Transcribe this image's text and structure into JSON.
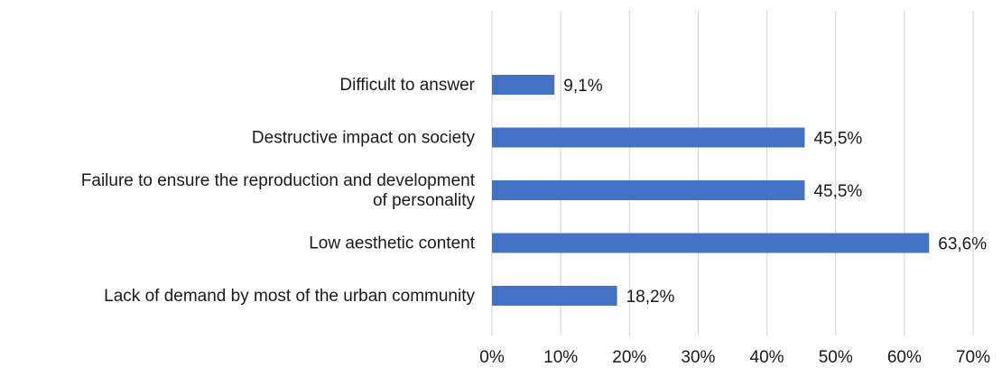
{
  "chart_data": {
    "type": "bar",
    "orientation": "horizontal",
    "categories": [
      "Difficult to answer",
      "Destructive impact on society",
      "Failure to ensure the reproduction and development of personality",
      "Low aesthetic content",
      "Lack of demand by most of the urban community"
    ],
    "category_lines": [
      [
        "Difficult to answer"
      ],
      [
        "Destructive impact on society"
      ],
      [
        "Failure to ensure the reproduction and development",
        "of personality"
      ],
      [
        "Low aesthetic content"
      ],
      [
        "Lack of demand by most of the urban community"
      ]
    ],
    "values": [
      9.1,
      45.5,
      45.5,
      63.6,
      18.2
    ],
    "data_labels": [
      "9,1%",
      "45,5%",
      "45,5%",
      "63,6%",
      "18,2%"
    ],
    "xlim": [
      0,
      70
    ],
    "x_ticks": [
      0,
      10,
      20,
      30,
      40,
      50,
      60,
      70
    ],
    "x_tick_labels": [
      "0%",
      "10%",
      "20%",
      "30%",
      "40%",
      "50%",
      "60%",
      "70%"
    ],
    "title": "",
    "xlabel": "",
    "ylabel": "",
    "grid": true,
    "legend": "none",
    "bar_color": "#4472c4",
    "grid_color": "#d9d9d9"
  }
}
